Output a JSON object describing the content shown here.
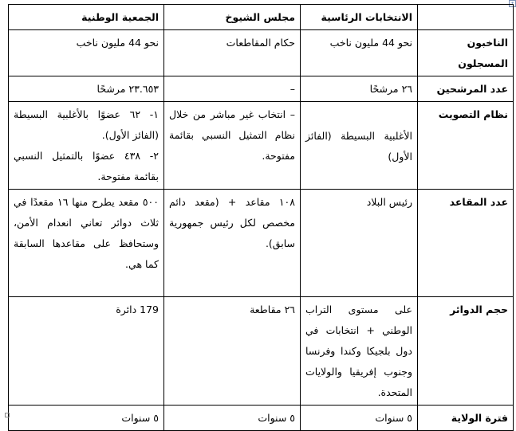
{
  "table": {
    "headers": [
      "",
      "الانتخابات الرئاسية",
      "مجلس الشيوخ",
      "الجمعية الوطنية"
    ],
    "rows": [
      {
        "label": "الناخبون المسجلون",
        "cells": [
          [
            "نحو 44 مليون ناخب"
          ],
          [
            "حكام المقاطعات"
          ],
          [
            "نحو 44 مليون ناخب"
          ]
        ]
      },
      {
        "label": "عدد المرشحين",
        "cells": [
          [
            "٢٦ مرشحًا"
          ],
          [
            "–"
          ],
          [
            "٢٣.٦٥٣ مرشحًا"
          ]
        ]
      },
      {
        "label": "نظام التصويت",
        "cells": [
          [
            "الأغلبية البسيطة (الفائز الأول)"
          ],
          [
            "– انتخاب غير مباشر من خلال نظام التمثيل النسبي بقائمة مفتوحة."
          ],
          [
            "١- ٦٢ عضوًا بالأغلبية البسيطة (الفائز الأول).",
            "٢- ٤٣٨ عضوًا بالتمثيل النسبي بقائمة مفتوحة."
          ]
        ]
      },
      {
        "label": "عدد المقاعد",
        "cells": [
          [
            "رئيس البلاد"
          ],
          [
            "١٠٨ مقاعد + (مقعد دائم مخصص لكل رئيس جمهورية سابق)."
          ],
          [
            "٥٠٠ مقعد يطرح منها ١٦ مقعدًا في ثلاث دوائر تعاني انعدام الأمن، وستحافظ على مقاعدها السابقة كما هي."
          ]
        ]
      },
      {
        "label": "حجم الدوائر",
        "cells": [
          [
            "على مستوى التراب الوطني + انتخابات في دول بلجيكا وكندا وفرنسا وجنوب إفريقيا والولايات المتحدة."
          ],
          [
            "٢٦ مقاطعة"
          ],
          [
            "179 دائرة"
          ]
        ]
      },
      {
        "label": "فترة الولاية",
        "cells": [
          [
            "٥ سنوات"
          ],
          [
            "٥ سنوات"
          ],
          [
            "٥ سنوات"
          ]
        ]
      }
    ]
  }
}
